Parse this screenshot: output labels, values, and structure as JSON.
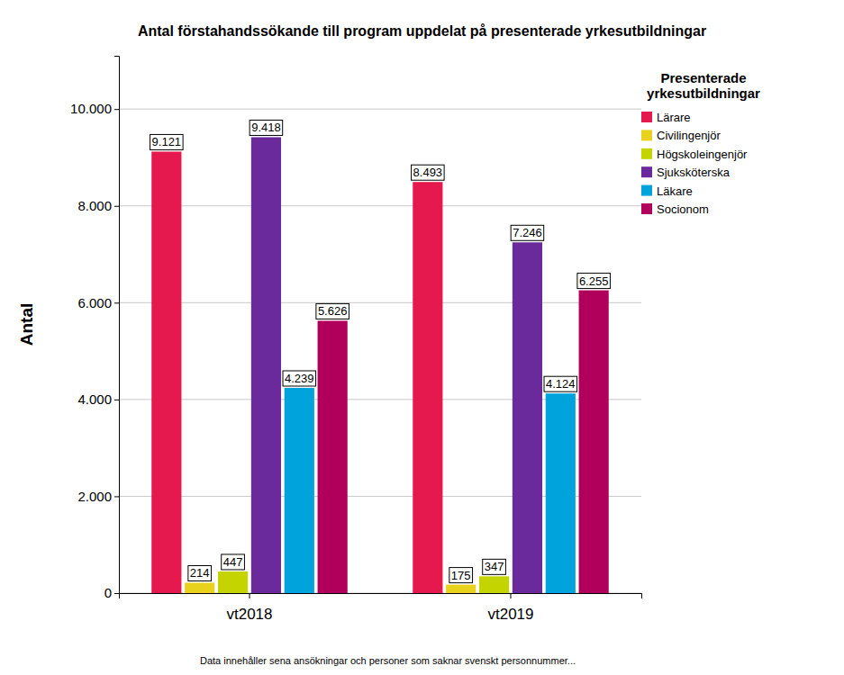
{
  "chart_data": {
    "type": "bar",
    "title": "Antal förstahandssökande till program uppdelat på presenterade yrkesutbildningar",
    "y_label": "Antal",
    "legend_title": "Presenterade yrkesutbildningar",
    "annotations": [
      "Data innehåller sena ansökningar och personer som saknar svenskt personnummer..."
    ],
    "categories": [
      "vt2018",
      "vt2019"
    ],
    "series": [
      {
        "name": "Lärare",
        "color": "#e5194d",
        "values": [
          9121,
          8493
        ],
        "value_labels": [
          "9.121",
          "8.493"
        ]
      },
      {
        "name": "Civilingenjör",
        "color": "#e8d21d",
        "values": [
          214,
          175
        ]
      },
      {
        "name": "Högskoleingenjör",
        "color": "#c4d400",
        "values": [
          447,
          347
        ]
      },
      {
        "name": "Sjuksköterska",
        "color": "#6a2a9c",
        "values": [
          9418,
          7246
        ],
        "value_labels": [
          "9.418",
          "7.246"
        ]
      },
      {
        "name": "Läkare",
        "color": "#00a3dc",
        "values": [
          4239,
          4124
        ],
        "value_labels": [
          "4.239",
          "4.124"
        ]
      },
      {
        "name": "Socionom",
        "color": "#b0005c",
        "values": [
          5626,
          6255
        ],
        "value_labels": [
          "5.626",
          "6.255"
        ]
      }
    ],
    "ylim": [
      0,
      11100
    ],
    "yticks": [
      0,
      {
        "value": 2000,
        "label": "2.000"
      },
      {
        "value": 4000,
        "label": "4.000"
      },
      {
        "value": 6000,
        "label": "6.000"
      },
      {
        "value": 8000,
        "label": "8.000"
      },
      {
        "value": 10000,
        "label": "10.000"
      }
    ],
    "grid": true,
    "legend": "right",
    "data_labels": true
  }
}
